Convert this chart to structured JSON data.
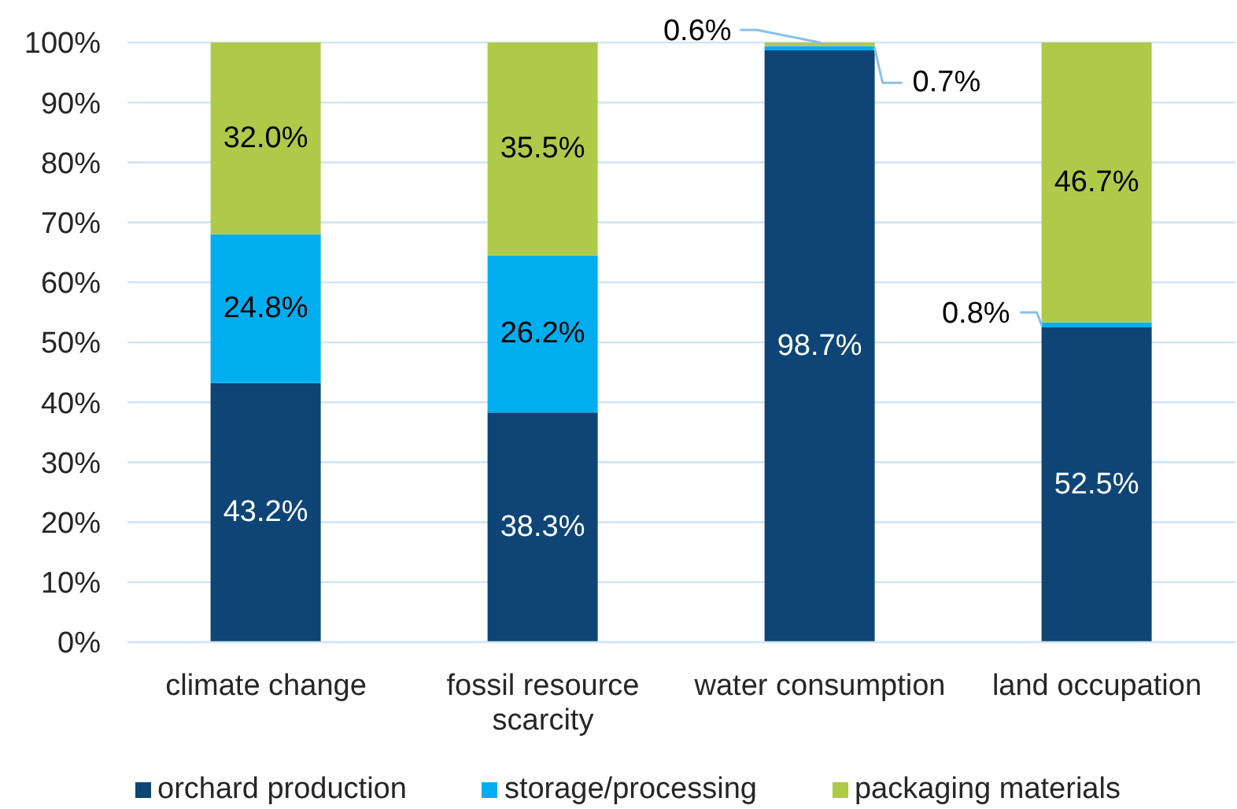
{
  "chart_data": {
    "type": "bar",
    "stacked": true,
    "categories": [
      "climate change",
      "fossil resource scarcity",
      "water consumption",
      "land occupation"
    ],
    "series": [
      {
        "name": "orchard production",
        "color": "#0e4576",
        "values": [
          43.2,
          38.3,
          98.7,
          52.5
        ],
        "value_labels": [
          "43.2%",
          "38.3%",
          "98.7%",
          "52.5%"
        ]
      },
      {
        "name": "storage/processing",
        "color": "#00aeef",
        "values": [
          24.8,
          26.2,
          0.7,
          0.8
        ],
        "value_labels": [
          "24.8%",
          "26.2%",
          "0.7%",
          "0.8%"
        ]
      },
      {
        "name": "packaging materials",
        "color": "#afca48",
        "values": [
          32.0,
          35.5,
          0.6,
          46.7
        ],
        "value_labels": [
          "32.0%",
          "35.5%",
          "0.6%",
          "46.7%"
        ]
      }
    ],
    "ylim": [
      0,
      100
    ],
    "yticks": [
      {
        "value": 0,
        "label": "0%"
      },
      {
        "value": 10,
        "label": "10%"
      },
      {
        "value": 20,
        "label": "20%"
      },
      {
        "value": 30,
        "label": "30%"
      },
      {
        "value": 40,
        "label": "40%"
      },
      {
        "value": 50,
        "label": "50%"
      },
      {
        "value": 60,
        "label": "60%"
      },
      {
        "value": 70,
        "label": "70%"
      },
      {
        "value": 80,
        "label": "80%"
      },
      {
        "value": 90,
        "label": "90%"
      },
      {
        "value": 100,
        "label": "100%"
      }
    ],
    "grid": "y",
    "legend": "bottom"
  }
}
